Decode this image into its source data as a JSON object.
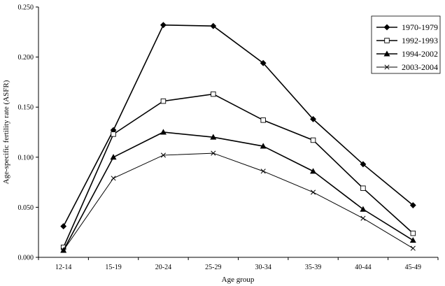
{
  "chart_data": {
    "type": "line",
    "title": "",
    "xlabel": "Age group",
    "ylabel": "Age-specific fertility rate (ASFR)",
    "categories": [
      "12-14",
      "15-19",
      "20-24",
      "25-29",
      "30-34",
      "35-39",
      "40-44",
      "45-49"
    ],
    "ylim": [
      0,
      0.25
    ],
    "yticks": [
      "0.000",
      "0.050",
      "0.100",
      "0.150",
      "0.200",
      "0.250"
    ],
    "grid": false,
    "legend_position": "top-right",
    "series": [
      {
        "name": "1970-1979",
        "marker": "diamond-filled",
        "line_width": 1.6,
        "values": [
          0.031,
          0.127,
          0.232,
          0.231,
          0.194,
          0.138,
          0.093,
          0.052
        ]
      },
      {
        "name": "1992-1993",
        "marker": "square-open",
        "line_width": 1.6,
        "values": [
          0.01,
          0.123,
          0.156,
          0.163,
          0.137,
          0.117,
          0.069,
          0.024
        ]
      },
      {
        "name": "1994-2002",
        "marker": "triangle-filled",
        "line_width": 1.6,
        "values": [
          0.007,
          0.1,
          0.125,
          0.12,
          0.111,
          0.086,
          0.048,
          0.017
        ]
      },
      {
        "name": "2003-2004",
        "marker": "x",
        "line_width": 1.0,
        "values": [
          0.007,
          0.079,
          0.102,
          0.104,
          0.086,
          0.065,
          0.039,
          0.009
        ]
      }
    ]
  }
}
